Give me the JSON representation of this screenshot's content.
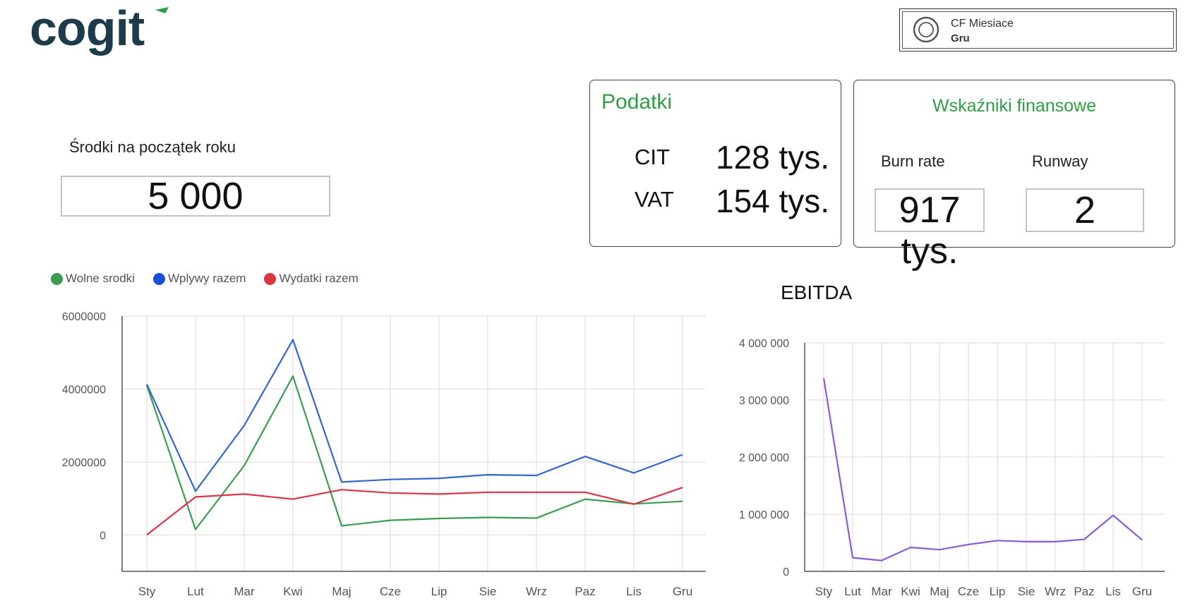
{
  "brand": {
    "logo_text": "cogit",
    "accent_color": "#2ea043",
    "logo_color": "#1d3b4a"
  },
  "filter": {
    "label": "CF Miesiace",
    "value": "Gru",
    "icon": "circle-radio-icon"
  },
  "opening_balance": {
    "label": "Środki na początek roku",
    "value": "5 000"
  },
  "taxes": {
    "title": "Podatki",
    "items": [
      {
        "name": "CIT",
        "value": "128 tys."
      },
      {
        "name": "VAT",
        "value": "154 tys."
      }
    ]
  },
  "financial_indicators": {
    "title": "Wskaźniki finansowe",
    "burn_rate": {
      "label": "Burn rate",
      "value": "917 tys."
    },
    "runway": {
      "label": "Runway",
      "value": "2"
    }
  },
  "ebitda_title": "EBITDA",
  "chart_data": [
    {
      "type": "line",
      "title": "",
      "xlabel": "",
      "ylabel": "",
      "categories": [
        "Sty",
        "Lut",
        "Mar",
        "Kwi",
        "Maj",
        "Cze",
        "Lip",
        "Sie",
        "Wrz",
        "Paz",
        "Lis",
        "Gru"
      ],
      "y_ticks": [
        "6000000",
        "4000000",
        "2000000",
        "0"
      ],
      "ylim": [
        -1000000,
        6000000
      ],
      "grid": true,
      "legend_position": "top-left",
      "series": [
        {
          "name": "Wolne srodki",
          "color": "#3a9d4f",
          "values": [
            4100000,
            150000,
            1900000,
            4350000,
            250000,
            400000,
            450000,
            480000,
            460000,
            980000,
            850000,
            920000
          ]
        },
        {
          "name": "Wplywy razem",
          "color": "#3366cc",
          "values": [
            4130000,
            1200000,
            3000000,
            5350000,
            1450000,
            1520000,
            1550000,
            1650000,
            1630000,
            2150000,
            1700000,
            2200000
          ]
        },
        {
          "name": "Wydatki razem",
          "color": "#dc3545",
          "values": [
            0,
            1040000,
            1120000,
            980000,
            1240000,
            1150000,
            1120000,
            1170000,
            1170000,
            1170000,
            840000,
            1300000
          ]
        }
      ]
    },
    {
      "type": "line",
      "title": "EBITDA",
      "xlabel": "",
      "ylabel": "",
      "categories": [
        "Sty",
        "Lut",
        "Mar",
        "Kwi",
        "Maj",
        "Cze",
        "Lip",
        "Sie",
        "Wrz",
        "Paz",
        "Lis",
        "Gru"
      ],
      "y_ticks": [
        "4 000 000",
        "3 000 000",
        "2 000 000",
        "1 000 000",
        "0"
      ],
      "ylim": [
        0,
        4000000
      ],
      "grid": true,
      "series": [
        {
          "color": "#8e5bd6",
          "values": [
            3380000,
            240000,
            190000,
            420000,
            380000,
            470000,
            540000,
            520000,
            520000,
            560000,
            980000,
            550000
          ]
        }
      ]
    }
  ]
}
